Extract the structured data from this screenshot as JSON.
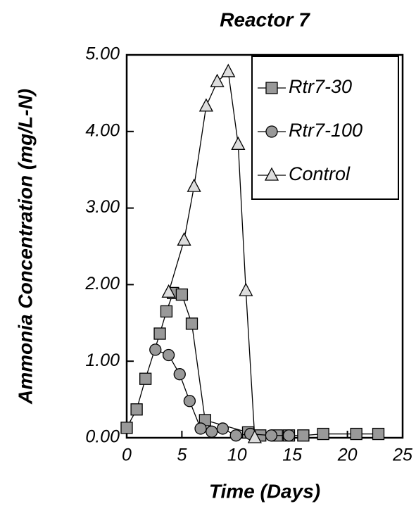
{
  "chart_data": {
    "type": "line",
    "title": "Reactor 7",
    "xlabel": "Time (Days)",
    "ylabel": "Ammonia Concentration (mg/L-N)",
    "xlim": [
      0,
      25
    ],
    "xticks": [
      0,
      5,
      10,
      15,
      20,
      25
    ],
    "ylim": [
      0,
      5
    ],
    "yticks": [
      {
        "value": 0,
        "label": "0.00"
      },
      {
        "value": 1,
        "label": "1.00"
      },
      {
        "value": 2,
        "label": "2.00"
      },
      {
        "value": 3,
        "label": "3.00"
      },
      {
        "value": 4,
        "label": "4.00"
      },
      {
        "value": 5,
        "label": "5.00"
      }
    ],
    "legend": "upper right",
    "series": [
      {
        "name": "Rtr7-30",
        "marker": "square",
        "color": "#999999",
        "x": [
          0,
          0.9,
          1.7,
          3,
          3.6,
          4.2,
          5,
          5.9,
          7.1,
          11,
          12.1,
          13.6,
          14.7,
          16,
          17.8,
          20.8,
          22.8
        ],
        "values": [
          0.13,
          0.37,
          0.77,
          1.36,
          1.65,
          1.89,
          1.87,
          1.49,
          0.23,
          0.07,
          0.03,
          0.03,
          0.03,
          0.03,
          0.05,
          0.05,
          0.05
        ]
      },
      {
        "name": "Rtr7-100",
        "marker": "circle",
        "color": "#999999",
        "x": [
          2.6,
          3.8,
          4.8,
          5.7,
          6.7,
          7.7,
          8.7,
          9.9,
          11.2,
          13.1,
          14.7
        ],
        "values": [
          1.15,
          1.08,
          0.83,
          0.48,
          0.12,
          0.08,
          0.12,
          0.03,
          0.05,
          0.03,
          0.03
        ]
      },
      {
        "name": "Control",
        "marker": "triangle",
        "color": "#dddddd",
        "x": [
          3.8,
          5.2,
          6.1,
          7.2,
          8.2,
          9.2,
          10.1,
          10.8,
          11.6
        ],
        "values": [
          1.9,
          2.58,
          3.28,
          4.33,
          4.65,
          4.78,
          3.83,
          1.92,
          0
        ]
      }
    ]
  }
}
